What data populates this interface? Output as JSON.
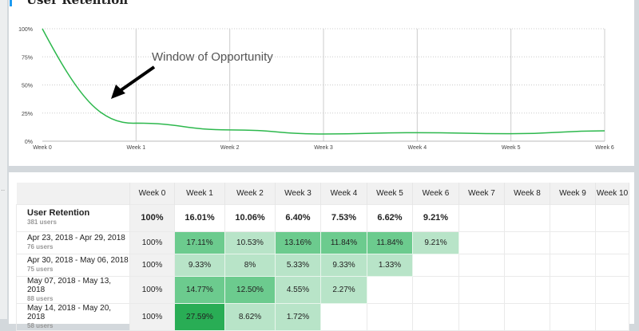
{
  "header": {
    "title": "User Retention"
  },
  "chart_data": {
    "type": "line",
    "categories": [
      "Week 0",
      "Week 1",
      "Week 2",
      "Week 3",
      "Week 4",
      "Week 5",
      "Week 6"
    ],
    "values": [
      100,
      16.01,
      10.06,
      6.4,
      7.53,
      6.62,
      9.21
    ],
    "yticks": [
      "0%",
      "25%",
      "50%",
      "75%",
      "100%"
    ],
    "ylim": [
      0,
      100
    ],
    "grid": true,
    "annotation": "Window of Opportunity",
    "color": "#2db84d"
  },
  "table": {
    "columns": [
      "",
      "Week 0",
      "Week 1",
      "Week 2",
      "Week 3",
      "Week 4",
      "Week 5",
      "Week 6",
      "Week 7",
      "Week 8",
      "Week 9",
      "Week 10"
    ],
    "summary": {
      "label": "User Retention",
      "users": "381 users",
      "values": [
        "100%",
        "16.01%",
        "10.06%",
        "6.40%",
        "7.53%",
        "6.62%",
        "9.21%",
        "",
        "",
        "",
        ""
      ]
    },
    "rows": [
      {
        "label": "Apr 23, 2018 - Apr 29, 2018",
        "users": "76 users",
        "values": [
          "100%",
          "17.11%",
          "10.53%",
          "13.16%",
          "11.84%",
          "11.84%",
          "9.21%",
          "",
          "",
          "",
          ""
        ]
      },
      {
        "label": "Apr 30, 2018 - May 06, 2018",
        "users": "75 users",
        "values": [
          "100%",
          "9.33%",
          "8%",
          "5.33%",
          "9.33%",
          "1.33%",
          "",
          "",
          "",
          "",
          ""
        ]
      },
      {
        "label": "May 07, 2018 - May 13, 2018",
        "users": "88 users",
        "values": [
          "100%",
          "14.77%",
          "12.50%",
          "4.55%",
          "2.27%",
          "",
          "",
          "",
          "",
          "",
          ""
        ]
      },
      {
        "label": "May 14, 2018 - May 20, 2018",
        "users": "58 users",
        "values": [
          "100%",
          "27.59%",
          "8.62%",
          "1.72%",
          "",
          "",
          "",
          "",
          "",
          "",
          ""
        ]
      }
    ]
  }
}
